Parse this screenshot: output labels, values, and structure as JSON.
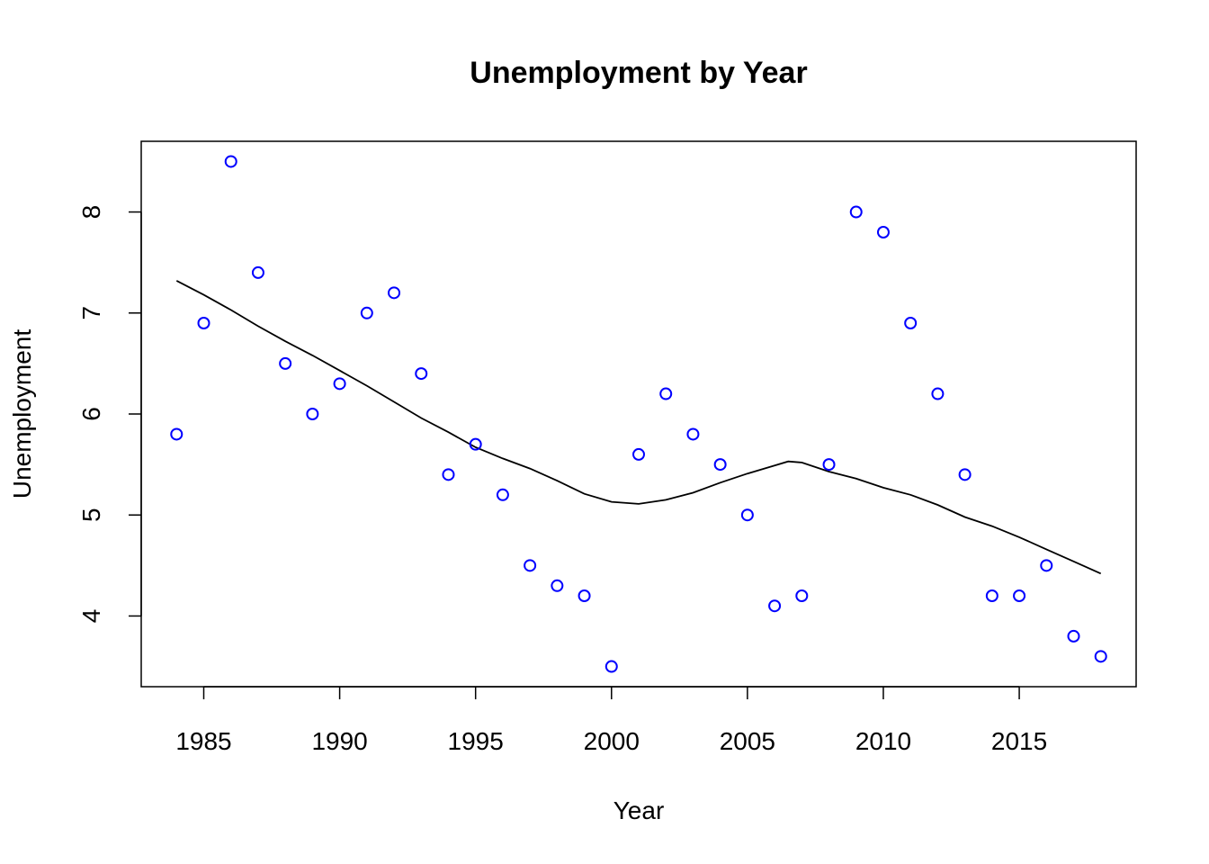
{
  "chart_data": {
    "type": "scatter",
    "title": "Unemployment by Year",
    "xlabel": "Year",
    "ylabel": "Unemployment",
    "xlim": [
      1982.7,
      2019.3
    ],
    "ylim": [
      3.3,
      8.7
    ],
    "xticks": [
      1985,
      1990,
      1995,
      2000,
      2005,
      2010,
      2015
    ],
    "yticks": [
      4,
      5,
      6,
      7,
      8
    ],
    "grid": false,
    "legend": "none",
    "point_color": "#0000ff",
    "line_color": "#000000",
    "series": [
      {
        "kind": "points",
        "x": [
          1984,
          1985,
          1986,
          1987,
          1988,
          1989,
          1990,
          1991,
          1992,
          1993,
          1994,
          1995,
          1996,
          1997,
          1998,
          1999,
          2000,
          2001,
          2002,
          2003,
          2004,
          2005,
          2006,
          2007,
          2008,
          2009,
          2010,
          2011,
          2012,
          2013,
          2014,
          2015,
          2016,
          2017,
          2018
        ],
        "y": [
          5.8,
          6.9,
          8.5,
          7.4,
          6.5,
          6.0,
          6.3,
          7.0,
          7.2,
          6.4,
          5.4,
          5.7,
          5.2,
          4.5,
          4.3,
          4.2,
          3.5,
          5.6,
          6.2,
          5.8,
          5.5,
          5.0,
          4.1,
          4.2,
          5.5,
          8.0,
          7.8,
          6.9,
          6.2,
          5.4,
          4.2,
          4.2,
          4.5,
          3.8,
          3.6
        ]
      },
      {
        "kind": "smooth-line",
        "x": [
          1984,
          1985,
          1986,
          1987,
          1988,
          1989,
          1990,
          1991,
          1992,
          1993,
          1994,
          1995,
          1996,
          1997,
          1998,
          1999,
          2000,
          2001,
          2002,
          2003,
          2004,
          2005,
          2006,
          2006.5,
          2007,
          2008,
          2009,
          2010,
          2011,
          2012,
          2013,
          2014,
          2015,
          2016,
          2017,
          2018
        ],
        "y": [
          7.32,
          7.18,
          7.03,
          6.87,
          6.72,
          6.58,
          6.43,
          6.28,
          6.12,
          5.96,
          5.82,
          5.67,
          5.56,
          5.46,
          5.34,
          5.21,
          5.13,
          5.11,
          5.15,
          5.22,
          5.32,
          5.41,
          5.49,
          5.53,
          5.52,
          5.43,
          5.36,
          5.27,
          5.2,
          5.1,
          4.98,
          4.89,
          4.78,
          4.66,
          4.54,
          4.42
        ]
      }
    ]
  }
}
